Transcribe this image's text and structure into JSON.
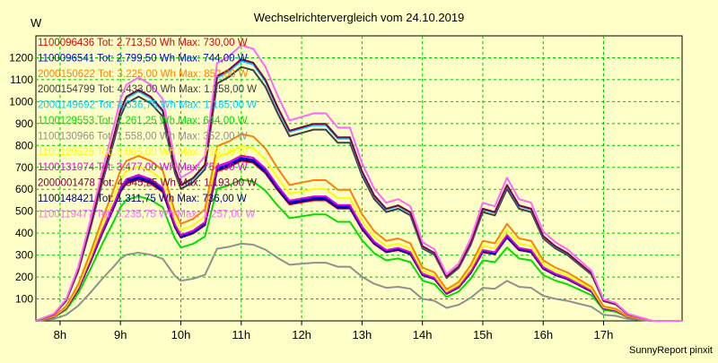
{
  "chart_data": {
    "type": "line",
    "title": "Wechselrichtervergleich vom 24.10.2019",
    "ylabel": "W",
    "xlabel": "",
    "footer": "SunnyReport pinxit",
    "ylim": [
      0,
      1300
    ],
    "xlim": [
      7.6,
      18.3
    ],
    "yticks": [
      100,
      200,
      300,
      400,
      500,
      600,
      700,
      800,
      900,
      1000,
      1100,
      1200
    ],
    "xticks": [
      {
        "v": 8,
        "label": "8h"
      },
      {
        "v": 9,
        "label": "9h"
      },
      {
        "v": 10,
        "label": "10h"
      },
      {
        "v": 11,
        "label": "11h"
      },
      {
        "v": 12,
        "label": "12h"
      },
      {
        "v": 13,
        "label": "13h"
      },
      {
        "v": 14,
        "label": "14h"
      },
      {
        "v": 15,
        "label": "15h"
      },
      {
        "v": 16,
        "label": "16h"
      },
      {
        "v": 17,
        "label": "17h"
      }
    ],
    "grid": true,
    "legend_position": "top-left",
    "x": [
      7.6,
      7.9,
      8.1,
      8.3,
      8.5,
      8.7,
      8.9,
      9.0,
      9.1,
      9.3,
      9.5,
      9.7,
      9.9,
      10.0,
      10.2,
      10.4,
      10.6,
      10.8,
      11.0,
      11.2,
      11.4,
      11.6,
      11.8,
      12.0,
      12.2,
      12.4,
      12.6,
      12.8,
      13.0,
      13.2,
      13.4,
      13.6,
      13.8,
      14.0,
      14.2,
      14.4,
      14.6,
      14.8,
      15.0,
      15.2,
      15.4,
      15.6,
      15.8,
      16.0,
      16.2,
      16.4,
      16.6,
      16.8,
      17.0,
      17.2,
      17.4,
      17.6,
      17.8,
      18.0,
      18.3
    ],
    "shape": [
      0.0,
      0.02,
      0.06,
      0.15,
      0.28,
      0.42,
      0.55,
      0.62,
      0.66,
      0.68,
      0.66,
      0.62,
      0.45,
      0.4,
      0.42,
      0.46,
      0.72,
      0.74,
      0.77,
      0.76,
      0.71,
      0.63,
      0.56,
      0.57,
      0.58,
      0.58,
      0.54,
      0.54,
      0.44,
      0.37,
      0.33,
      0.34,
      0.32,
      0.22,
      0.2,
      0.13,
      0.16,
      0.23,
      0.33,
      0.32,
      0.4,
      0.34,
      0.33,
      0.25,
      0.22,
      0.2,
      0.17,
      0.14,
      0.06,
      0.05,
      0.02,
      0.01,
      0.0,
      0.0,
      0.0
    ],
    "series": [
      {
        "name": "1100096436 Tot: 2.713,50 Wh Max: 730,00 W",
        "color": "#e00000",
        "max": 730
      },
      {
        "name": "1100096541 Tot: 2.799,50 Wh Max: 744,00 W",
        "color": "#0000e0",
        "max": 744
      },
      {
        "name": "2000150622 Tot: 3.225,00 Wh Max: 852,00 W",
        "color": "#ff8000",
        "max": 852
      },
      {
        "name": "2000154799 Tot: 4.433,00 Wh Max: 1.158,00 W",
        "color": "#404040",
        "max": 1158
      },
      {
        "name": "2000149692 Tot: 4.536,75 Wh Max: 1.185,00 W",
        "color": "#00d0ff",
        "max": 1185
      },
      {
        "name": "1100129553 Tot: 2.261,25 Wh Max: 644,00 W",
        "color": "#00e000",
        "max": 644
      },
      {
        "name": "1100130966 Tot: 1.558,00 Wh Max: 352,00 W",
        "color": "#909090",
        "max": 352
      },
      {
        "name": "1100129525 Tot: 3.065,00 Wh Max: 798,00 W",
        "color": "#ffff00",
        "max": 798
      },
      {
        "name": "1100131074 Tot: 3.477,00 Wh Max: 754,00 W",
        "color": "#e000e0",
        "max": 754
      },
      {
        "name": "2000001478 Tot: 4.545,25 Wh Max: 1.193,00 W",
        "color": "#800040",
        "max": 1193
      },
      {
        "name": "1100148421 Tot: 1.311,75 Wh Max: 736,00 W",
        "color": "#000080",
        "max": 736
      },
      {
        "name": "1100119477 Tot: 3.235,75 Wh Max: 1.257,00 W",
        "color": "#ff66ff",
        "max": 1257
      }
    ]
  }
}
